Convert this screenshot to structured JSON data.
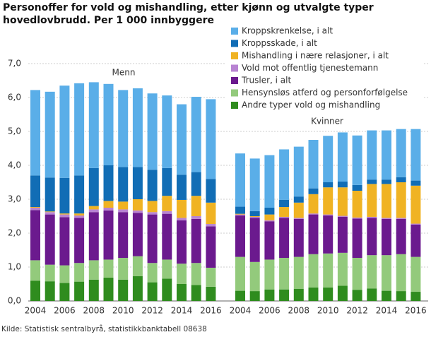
{
  "chart_data": {
    "type": "bar",
    "stacked": true,
    "title": "Personoffer for vold og mishandling, etter kjønn og utvalgte typer hovedlovbrudd. Per 1 000 innbyggere",
    "source": "Kilde: Statistisk sentralbyrå, statistikkbanktabell  08638",
    "categories": [
      "2004",
      null,
      "2006",
      null,
      "2008",
      null,
      "2010",
      null,
      "2012",
      null,
      "2014",
      null,
      "2016"
    ],
    "ylim": [
      0,
      7
    ],
    "yticks": [
      {
        "value": 0,
        "label": "0,0"
      },
      {
        "value": 1,
        "label": "1,0"
      },
      {
        "value": 2,
        "label": "2,0"
      },
      {
        "value": 3,
        "label": "3,0"
      },
      {
        "value": 4,
        "label": "4,0"
      },
      {
        "value": 5,
        "label": "5,0"
      },
      {
        "value": 6,
        "label": "6,0"
      },
      {
        "value": 7,
        "label": "7,0"
      }
    ],
    "grid": true,
    "series": [
      {
        "name": "Kroppskrenkelse, i alt",
        "color": "#5aaee8"
      },
      {
        "name": "Kroppsskade, i alt",
        "color": "#116db5"
      },
      {
        "name": "Mishandling i nære relasjoner, i alt",
        "color": "#f0b323"
      },
      {
        "name": "Vold mot offentlig tjenestemann",
        "color": "#b883d2"
      },
      {
        "name": "Trusler, i alt",
        "color": "#6b1a8e"
      },
      {
        "name": "Hensynsløs atferd og personforfølgelse",
        "color": "#93ca7c"
      },
      {
        "name": "Andre typer vold og mishandling",
        "color": "#2f8c1e"
      }
    ],
    "panels": [
      {
        "label": "Menn",
        "values": [
          [
            2.52,
            2.53,
            2.72,
            2.72,
            2.53,
            2.4,
            2.27,
            2.32,
            2.25,
            2.14,
            2.08,
            2.22,
            2.35
          ],
          [
            0.93,
            1.0,
            1.05,
            1.12,
            1.12,
            1.05,
            1.02,
            0.95,
            0.92,
            0.82,
            0.74,
            0.7,
            0.7
          ],
          [
            0.02,
            0.02,
            0.03,
            0.06,
            0.1,
            0.2,
            0.23,
            0.33,
            0.33,
            0.45,
            0.53,
            0.6,
            0.63
          ],
          [
            0.07,
            0.07,
            0.08,
            0.07,
            0.08,
            0.08,
            0.08,
            0.07,
            0.07,
            0.08,
            0.07,
            0.08,
            0.07
          ],
          [
            1.48,
            1.48,
            1.42,
            1.33,
            1.42,
            1.45,
            1.35,
            1.28,
            1.43,
            1.35,
            1.28,
            1.3,
            1.22
          ],
          [
            0.6,
            0.49,
            0.52,
            0.55,
            0.57,
            0.53,
            0.64,
            0.59,
            0.57,
            0.56,
            0.6,
            0.65,
            0.56
          ],
          [
            0.6,
            0.58,
            0.53,
            0.57,
            0.63,
            0.69,
            0.63,
            0.73,
            0.55,
            0.66,
            0.5,
            0.47,
            0.42
          ]
        ]
      },
      {
        "label": "Kvinner",
        "values": [
          [
            1.57,
            1.55,
            1.55,
            1.49,
            1.47,
            1.43,
            1.37,
            1.45,
            1.46,
            1.45,
            1.45,
            1.42,
            1.52
          ],
          [
            0.21,
            0.15,
            0.2,
            0.21,
            0.18,
            0.17,
            0.15,
            0.17,
            0.17,
            0.13,
            0.13,
            0.15,
            0.15
          ],
          [
            0.02,
            0.02,
            0.17,
            0.29,
            0.45,
            0.57,
            0.8,
            0.84,
            0.79,
            0.97,
            1.0,
            1.05,
            1.12
          ],
          [
            0.03,
            0.03,
            0.03,
            0.03,
            0.03,
            0.03,
            0.03,
            0.03,
            0.03,
            0.03,
            0.03,
            0.03,
            0.03
          ],
          [
            1.22,
            1.3,
            1.13,
            1.18,
            1.12,
            1.17,
            1.12,
            1.06,
            1.16,
            1.1,
            1.07,
            1.04,
            0.95
          ],
          [
            1.0,
            0.86,
            0.88,
            0.93,
            0.94,
            0.98,
            1.0,
            0.97,
            0.94,
            0.98,
            1.05,
            1.09,
            1.03
          ],
          [
            0.3,
            0.29,
            0.34,
            0.34,
            0.36,
            0.4,
            0.4,
            0.45,
            0.33,
            0.37,
            0.3,
            0.29,
            0.27
          ]
        ]
      }
    ]
  }
}
